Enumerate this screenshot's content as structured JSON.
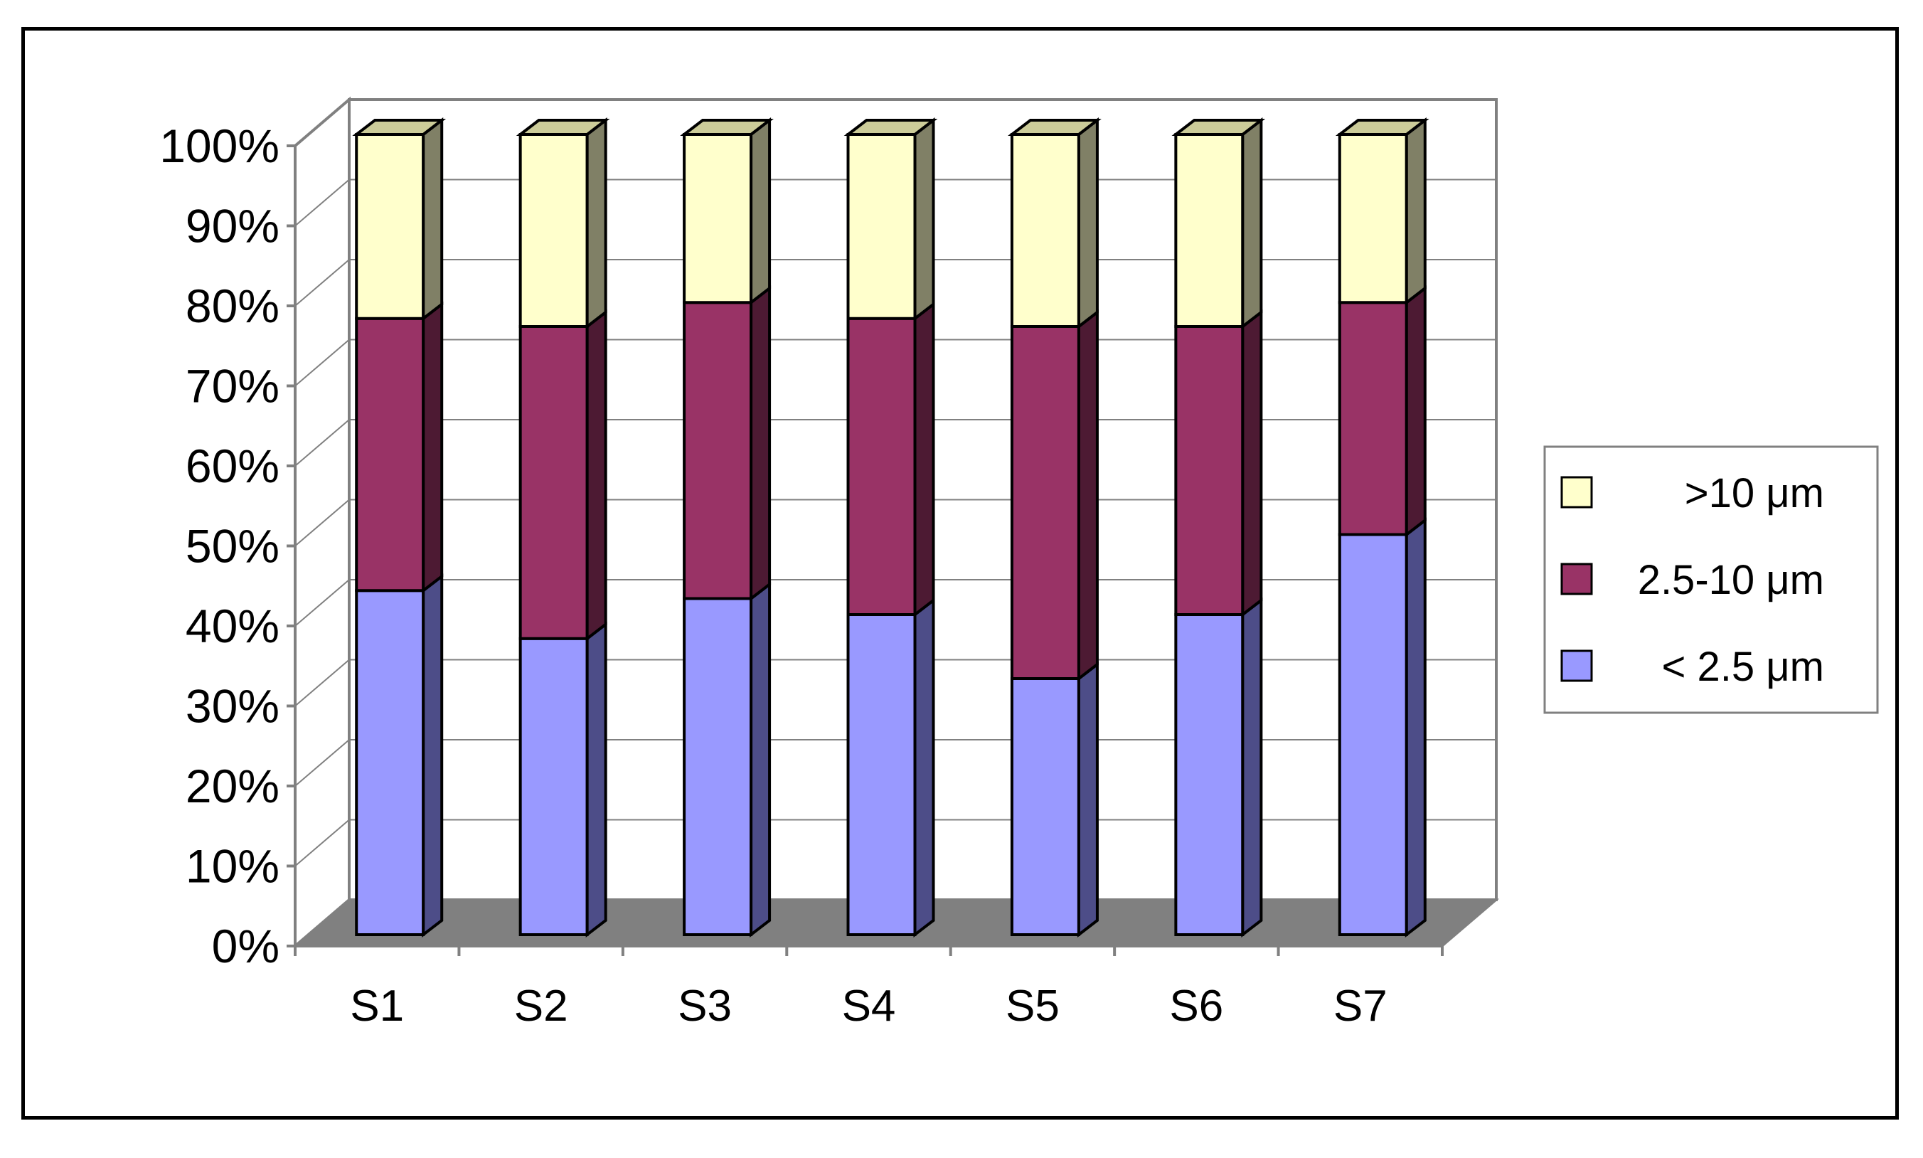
{
  "chart_data": {
    "type": "bar",
    "stacked": true,
    "three_d": true,
    "title": "",
    "xlabel": "",
    "ylabel": "",
    "ylim": [
      0,
      100
    ],
    "yticks": [
      "0%",
      "10%",
      "20%",
      "30%",
      "40%",
      "50%",
      "60%",
      "70%",
      "80%",
      "90%",
      "100%"
    ],
    "categories": [
      "S1",
      "S2",
      "S3",
      "S4",
      "S5",
      "S6",
      "S7"
    ],
    "series": [
      {
        "name": "< 2.5 μm",
        "values": [
          43,
          37,
          42,
          40,
          32,
          40,
          50
        ],
        "color": "#9999ff",
        "side_color": "#4d4d88",
        "top_color": "#b3b3ff"
      },
      {
        "name": "2.5-10 μm",
        "values": [
          34,
          39,
          37,
          37,
          44,
          36,
          29
        ],
        "color": "#993366",
        "side_color": "#4d1a33",
        "top_color": "#a84d7a"
      },
      {
        "name": ">10 μm",
        "values": [
          23,
          24,
          21,
          23,
          24,
          24,
          21
        ],
        "color": "#ffffcc",
        "side_color": "#808066",
        "top_color": "#cccc99"
      }
    ],
    "legend_order": [
      2,
      1,
      0
    ],
    "legend_position": "right",
    "grid": true,
    "wall_color": "#ffffff",
    "floor_color": "#808080"
  }
}
